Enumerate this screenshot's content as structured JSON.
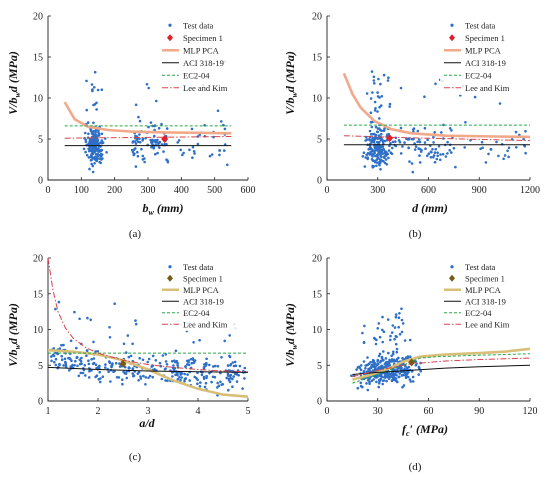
{
  "chart_data": [
    {
      "panel": "a",
      "caption": "(a)",
      "type": "scatter",
      "xlabel": "b_w (mm)",
      "xlabel_main": "b",
      "xlabel_sub": "w",
      "xlabel_rest": " (mm)",
      "ylabel": "V/b_w d (MPa)",
      "xlim": [
        0,
        600
      ],
      "ylim": [
        0,
        20
      ],
      "xticks": [
        "0",
        "100",
        "200",
        "300",
        "400",
        "500",
        "600"
      ],
      "yticks": [
        "0",
        "5",
        "10",
        "15",
        "20"
      ],
      "legend_position": "top-right",
      "legend": [
        "Test data",
        "Specimen 1",
        "MLP PCA",
        "ACI 318-19",
        "EC2-04",
        "Lee and Kim"
      ],
      "specimen": [
        350,
        5.0
      ],
      "lines": {
        "mlp": [
          [
            50,
            9.5
          ],
          [
            80,
            7.4
          ],
          [
            120,
            6.5
          ],
          [
            180,
            6.1
          ],
          [
            250,
            5.9
          ],
          [
            350,
            5.8
          ],
          [
            450,
            5.75
          ],
          [
            550,
            5.7
          ]
        ],
        "aci": [
          [
            50,
            4.2
          ],
          [
            550,
            4.2
          ]
        ],
        "ec2": [
          [
            50,
            6.6
          ],
          [
            550,
            6.6
          ]
        ],
        "lee": [
          [
            50,
            5.1
          ],
          [
            150,
            5.15
          ],
          [
            300,
            5.2
          ],
          [
            550,
            5.3
          ]
        ]
      }
    },
    {
      "panel": "b",
      "caption": "(b)",
      "type": "scatter",
      "xlabel": "d (mm)",
      "xlabel_main": "d",
      "xlabel_sub": "",
      "xlabel_rest": " (mm)",
      "ylabel": "V/b_w d (MPa)",
      "xlim": [
        0,
        1200
      ],
      "ylim": [
        0,
        20
      ],
      "xticks": [
        "0",
        "300",
        "600",
        "900",
        "1200"
      ],
      "yticks": [
        "0",
        "5",
        "10",
        "15",
        "20"
      ],
      "legend_position": "top-right",
      "legend": [
        "Test data",
        "Specimen 1",
        "MLP PCA",
        "ACI 318-19",
        "EC2-04",
        "Lee and Kim"
      ],
      "specimen": [
        370,
        5.1
      ],
      "lines": {
        "mlp": [
          [
            100,
            13.0
          ],
          [
            150,
            10.5
          ],
          [
            200,
            8.8
          ],
          [
            280,
            7.2
          ],
          [
            380,
            6.2
          ],
          [
            500,
            5.7
          ],
          [
            700,
            5.4
          ],
          [
            1000,
            5.3
          ],
          [
            1200,
            5.25
          ]
        ],
        "aci": [
          [
            100,
            4.3
          ],
          [
            1200,
            4.3
          ]
        ],
        "ec2": [
          [
            100,
            6.7
          ],
          [
            1200,
            6.7
          ]
        ],
        "lee": [
          [
            100,
            5.4
          ],
          [
            400,
            5.2
          ],
          [
            800,
            5.0
          ],
          [
            1200,
            4.8
          ]
        ]
      }
    },
    {
      "panel": "c",
      "caption": "(c)",
      "type": "scatter",
      "xlabel": "a/d",
      "xlabel_main": "a/d",
      "xlabel_sub": "",
      "xlabel_rest": "",
      "ylabel": "V/b_w d (MPa)",
      "xlim": [
        1,
        5
      ],
      "ylim": [
        0,
        20
      ],
      "xticks": [
        "1",
        "2",
        "3",
        "4",
        "5"
      ],
      "yticks": [
        "0",
        "5",
        "10",
        "15",
        "20"
      ],
      "legend_position": "top-right",
      "legend": [
        "Test data",
        "Specimen 1",
        "MLP PCA",
        "ACI 318-19",
        "EC2-04",
        "Lee and Kim"
      ],
      "specimen": [
        2.5,
        5.2
      ],
      "lines": {
        "mlp": [
          [
            1.0,
            7.1
          ],
          [
            1.5,
            6.9
          ],
          [
            2.0,
            6.5
          ],
          [
            2.5,
            5.7
          ],
          [
            3.0,
            4.4
          ],
          [
            3.5,
            2.9
          ],
          [
            4.0,
            1.7
          ],
          [
            4.5,
            0.9
          ],
          [
            5.0,
            0.6
          ]
        ],
        "aci": [
          [
            1.0,
            4.7
          ],
          [
            2.0,
            4.4
          ],
          [
            3.0,
            4.2
          ],
          [
            4.0,
            4.1
          ],
          [
            5.0,
            4.0
          ]
        ],
        "ec2": [
          [
            1.0,
            6.7
          ],
          [
            5.0,
            6.7
          ]
        ],
        "lee": [
          [
            1.0,
            20.0
          ],
          [
            1.1,
            15.5
          ],
          [
            1.2,
            12.5
          ],
          [
            1.35,
            10.2
          ],
          [
            1.5,
            8.8
          ],
          [
            1.75,
            7.5
          ],
          [
            2.0,
            6.7
          ],
          [
            2.5,
            5.7
          ],
          [
            3.0,
            5.1
          ],
          [
            3.5,
            4.7
          ],
          [
            4.0,
            4.4
          ],
          [
            4.5,
            4.2
          ],
          [
            5.0,
            4.1
          ]
        ]
      }
    },
    {
      "panel": "d",
      "caption": "(d)",
      "type": "scatter",
      "xlabel": "f_c' (MPa)",
      "xlabel_main": "f",
      "xlabel_sub": "c",
      "xlabel_rest": "′ (MPa)",
      "ylabel": "V/b_w d (MPa)",
      "xlim": [
        0,
        120
      ],
      "ylim": [
        0,
        20
      ],
      "xticks": [
        "0",
        "30",
        "60",
        "90",
        "120"
      ],
      "yticks": [
        "0",
        "5",
        "10",
        "15",
        "20"
      ],
      "legend_position": "top-right",
      "legend": [
        "Test data",
        "Specimen 1",
        "MLP PCA",
        "ACI 318-19",
        "EC2-04",
        "Lee and Kim"
      ],
      "specimen": [
        50,
        5.4
      ],
      "lines": {
        "mlp": [
          [
            15,
            3.0
          ],
          [
            25,
            3.6
          ],
          [
            35,
            4.4
          ],
          [
            45,
            5.5
          ],
          [
            55,
            6.2
          ],
          [
            70,
            6.5
          ],
          [
            90,
            6.7
          ],
          [
            105,
            6.9
          ],
          [
            120,
            7.3
          ]
        ],
        "aci": [
          [
            15,
            3.7
          ],
          [
            30,
            4.0
          ],
          [
            50,
            4.3
          ],
          [
            70,
            4.6
          ],
          [
            90,
            4.8
          ],
          [
            120,
            5.0
          ]
        ],
        "ec2": [
          [
            15,
            2.5
          ],
          [
            25,
            3.3
          ],
          [
            35,
            4.2
          ],
          [
            45,
            5.0
          ],
          [
            55,
            6.0
          ],
          [
            65,
            6.2
          ],
          [
            90,
            6.4
          ],
          [
            120,
            6.6
          ]
        ],
        "lee": [
          [
            15,
            3.4
          ],
          [
            30,
            4.3
          ],
          [
            50,
            5.2
          ],
          [
            70,
            5.6
          ],
          [
            90,
            5.8
          ],
          [
            120,
            6.0
          ]
        ]
      }
    }
  ],
  "colors": {
    "test_data": "#2E6FC7",
    "specimen_ab": "#E01F26",
    "specimen_cd": "#7A5A10",
    "mlp_ab": "#F2A98A",
    "mlp_cd": "#D7BF78",
    "aci": "#111111",
    "ec2": "#2BA84A",
    "lee": "#D9434E"
  }
}
